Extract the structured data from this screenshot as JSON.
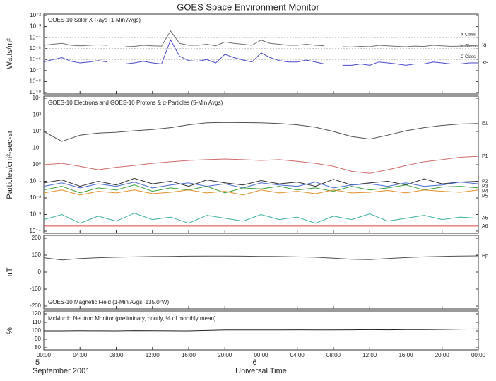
{
  "title": "GOES Space Environment Monitor",
  "chart_data": [
    {
      "type": "line",
      "title": "GOES-10 Solar X-Rays (1-Min Avgs)",
      "ylabel": "Watts/m²",
      "log": true,
      "ylim": [
        1e-09,
        0.01
      ],
      "yticks": [
        {
          "value": 0.01,
          "label": "10⁻²"
        },
        {
          "value": 0.001,
          "label": "10⁻³"
        },
        {
          "value": 0.0001,
          "label": "10⁻⁴"
        },
        {
          "value": 1e-05,
          "label": "10⁻⁵"
        },
        {
          "value": 1e-06,
          "label": "10⁻⁶"
        },
        {
          "value": 1e-07,
          "label": "10⁻⁷"
        },
        {
          "value": 1e-08,
          "label": "10⁻⁸"
        },
        {
          "value": 1e-09,
          "label": "10⁻⁹"
        }
      ],
      "reference_lines": [
        {
          "value": 0.0001,
          "label": "X Class"
        },
        {
          "value": 1e-05,
          "label": "M Class"
        },
        {
          "value": 1e-06,
          "label": "C Class"
        }
      ],
      "x": [
        0,
        1,
        2,
        3,
        4,
        5,
        6,
        7,
        8,
        9,
        10,
        11,
        12,
        13,
        14,
        15,
        16,
        17,
        18,
        19,
        20,
        21,
        22,
        23,
        24,
        25,
        26,
        27,
        28,
        29,
        30,
        31,
        32,
        33,
        34,
        35,
        36,
        37,
        38,
        39,
        40,
        41,
        42,
        43,
        44,
        45,
        46,
        47,
        48
      ],
      "series": [
        {
          "name": "XL",
          "color": "#707070",
          "values": [
            2e-05,
            2.5e-05,
            3e-05,
            2e-05,
            1.8e-05,
            2e-05,
            2.2e-05,
            2e-05,
            null,
            1.5e-05,
            1.6e-05,
            2e-05,
            1.8e-05,
            1.7e-05,
            0.0004,
            3e-05,
            2e-05,
            2e-05,
            2.5e-05,
            1.8e-05,
            4e-05,
            3e-05,
            2.5e-05,
            2e-05,
            6e-05,
            3e-05,
            2.5e-05,
            2e-05,
            2e-05,
            2.5e-05,
            2e-05,
            1.8e-05,
            null,
            1.5e-05,
            1.4e-05,
            1.6e-05,
            1.5e-05,
            2e-05,
            1.8e-05,
            1.6e-05,
            1.5e-05,
            1.7e-05,
            1.6e-05,
            2e-05,
            1.8e-05,
            1.6e-05,
            1.7e-05,
            1.8e-05,
            1.8e-05
          ]
        },
        {
          "name": "XS",
          "color": "#4848c8",
          "values": [
            6e-07,
            1e-06,
            1.5e-06,
            7e-07,
            5e-07,
            6e-07,
            8e-07,
            6e-07,
            null,
            4e-07,
            5e-07,
            7e-07,
            5e-07,
            4e-07,
            6e-05,
            2e-06,
            8e-07,
            7e-07,
            1e-06,
            5e-07,
            3e-06,
            1.5e-06,
            9e-07,
            6e-07,
            4e-06,
            1.5e-06,
            8e-07,
            6e-07,
            6e-07,
            9e-07,
            6e-07,
            4e-07,
            null,
            3e-07,
            3e-07,
            4e-07,
            3e-07,
            6e-07,
            5e-07,
            4e-07,
            3e-07,
            4e-07,
            4e-07,
            6e-07,
            5e-07,
            4e-07,
            4e-07,
            5e-07,
            5e-07
          ]
        }
      ]
    },
    {
      "type": "line",
      "title": "GOES-10 Electrons and GOES-10 Protons & α-Particles (5-Min Avgs)",
      "ylabel": "Particles/cm²-sec-sr",
      "log": true,
      "ylim": [
        0.0001,
        10000
      ],
      "yticks": [
        {
          "value": 10000,
          "label": "10⁴"
        },
        {
          "value": 1000,
          "label": "10³"
        },
        {
          "value": 100,
          "label": "10²"
        },
        {
          "value": 10,
          "label": "10¹"
        },
        {
          "value": 1,
          "label": "10⁰"
        },
        {
          "value": 0.1,
          "label": "10⁻¹"
        },
        {
          "value": 0.01,
          "label": "10⁻²"
        },
        {
          "value": 0.001,
          "label": "10⁻³"
        },
        {
          "value": 0.0001,
          "label": "10⁻⁴"
        }
      ],
      "x": [
        0,
        2,
        4,
        6,
        8,
        10,
        12,
        14,
        16,
        18,
        20,
        22,
        24,
        26,
        28,
        30,
        32,
        34,
        36,
        38,
        40,
        42,
        44,
        46,
        48
      ],
      "series": [
        {
          "name": "E1",
          "color": "#505050",
          "values": [
            100,
            25,
            60,
            80,
            90,
            110,
            130,
            170,
            250,
            330,
            350,
            340,
            330,
            300,
            250,
            180,
            100,
            50,
            35,
            60,
            110,
            170,
            230,
            280,
            300
          ]
        },
        {
          "name": "P1",
          "color": "#d06a6a",
          "values": [
            1,
            1.2,
            0.8,
            0.5,
            0.7,
            0.9,
            1.2,
            1.5,
            1.8,
            2,
            2.2,
            2,
            1.8,
            2,
            1.6,
            1.2,
            0.8,
            0.4,
            0.3,
            0.5,
            0.9,
            1.5,
            2,
            2.8,
            3.2
          ]
        },
        {
          "name": "P2",
          "color": "#303030",
          "values": [
            0.08,
            0.12,
            0.05,
            0.1,
            0.06,
            0.15,
            0.07,
            0.1,
            0.05,
            0.12,
            0.08,
            0.06,
            0.11,
            0.07,
            0.09,
            0.05,
            0.13,
            0.06,
            0.08,
            0.1,
            0.06,
            0.14,
            0.07,
            0.09,
            0.1
          ]
        },
        {
          "name": "P3",
          "color": "#4a6ad0",
          "values": [
            0.05,
            0.08,
            0.04,
            0.07,
            0.05,
            0.09,
            0.04,
            0.06,
            0.08,
            0.05,
            0.07,
            0.04,
            0.08,
            0.06,
            0.05,
            0.09,
            0.04,
            0.06,
            0.07,
            0.05,
            0.08,
            0.05,
            0.06,
            0.09,
            0.07
          ]
        },
        {
          "name": "P4",
          "color": "#3aa03a",
          "values": [
            0.03,
            0.05,
            0.02,
            0.04,
            0.03,
            0.06,
            0.025,
            0.04,
            0.03,
            0.05,
            0.02,
            0.04,
            0.035,
            0.05,
            0.03,
            0.04,
            0.025,
            0.05,
            0.03,
            0.04,
            0.06,
            0.03,
            0.045,
            0.05,
            0.04
          ]
        },
        {
          "name": "P5",
          "color": "#e0902a",
          "values": [
            0.02,
            0.03,
            0.015,
            0.025,
            0.02,
            0.03,
            0.018,
            0.022,
            0.03,
            0.02,
            0.025,
            0.015,
            0.03,
            0.02,
            0.025,
            0.018,
            0.03,
            0.02,
            0.022,
            0.028,
            0.02,
            0.03,
            0.025,
            0.022,
            0.03
          ]
        },
        {
          "name": "A5",
          "color": "#3ab0a0",
          "values": [
            0.0005,
            0.001,
            0.0003,
            0.0008,
            0.0004,
            0.0012,
            0.0005,
            0.0007,
            0.0003,
            0.0009,
            0.0006,
            0.0004,
            0.001,
            0.0005,
            0.0007,
            0.0003,
            0.0008,
            0.0005,
            0.0011,
            0.0004,
            0.0006,
            0.0009,
            0.0005,
            0.0007,
            0.0006
          ]
        },
        {
          "name": "A6",
          "color": "#e04040",
          "values": [
            0.0002,
            0.0002,
            0.0002,
            0.0002,
            0.0002,
            0.0002,
            0.0002,
            0.0002,
            0.0002,
            0.0002,
            0.0002,
            0.0002,
            0.0002,
            0.0002,
            0.0002,
            0.0002,
            0.0002,
            0.0002,
            0.0002,
            0.0002,
            0.0002,
            0.0002,
            0.0002,
            0.0002,
            0.0002
          ]
        }
      ]
    },
    {
      "type": "line",
      "title": "GOES-10 Magnetic Field (1-Min Avgs, 135.0°W)",
      "ylabel": "nT",
      "ylim": [
        -200,
        200
      ],
      "yticks": [
        200,
        100,
        0,
        -100,
        -200
      ],
      "x": [
        0,
        2,
        4,
        6,
        8,
        10,
        12,
        14,
        16,
        18,
        20,
        22,
        24,
        26,
        28,
        30,
        32,
        34,
        36,
        38,
        40,
        42,
        44,
        46,
        48
      ],
      "series": [
        {
          "name": "Hp",
          "color": "#505050",
          "values": [
            85,
            72,
            80,
            85,
            88,
            90,
            92,
            93,
            94,
            95,
            95,
            94,
            93,
            92,
            90,
            88,
            82,
            76,
            74,
            80,
            86,
            90,
            93,
            95,
            96
          ]
        }
      ]
    },
    {
      "type": "line",
      "title": "McMurdo Neutron Monitor (preliminary, hourly, % of monthly mean)",
      "ylabel": "%",
      "ylim": [
        80,
        120
      ],
      "yticks": [
        120,
        110,
        100,
        90,
        80
      ],
      "x": [
        0,
        2,
        4,
        6,
        8,
        10,
        12,
        14,
        16,
        18,
        20,
        22,
        24,
        26,
        28,
        30,
        32,
        34,
        36,
        38,
        40,
        42,
        44,
        46,
        48
      ],
      "color": "#202020",
      "values": [
        100,
        100,
        100.2,
        100.1,
        100,
        100.3,
        100.2,
        100.1,
        100,
        100.5,
        101,
        101,
        101.1,
        101,
        101.2,
        101,
        101.1,
        101.2,
        101.3,
        101.2,
        101.4,
        101.5,
        101.7,
        102,
        102.2
      ],
      "xlim": [
        0,
        48
      ],
      "xticks": [
        {
          "value": 0,
          "label": "00:00"
        },
        {
          "value": 4,
          "label": "04:00"
        },
        {
          "value": 8,
          "label": "08:00"
        },
        {
          "value": 12,
          "label": "12:00"
        },
        {
          "value": 16,
          "label": "16:00"
        },
        {
          "value": 20,
          "label": "20:00"
        },
        {
          "value": 24,
          "label": "00:00"
        },
        {
          "value": 28,
          "label": "04:00"
        },
        {
          "value": 32,
          "label": "08:00"
        },
        {
          "value": 36,
          "label": "12:00"
        },
        {
          "value": 40,
          "label": "16:00"
        },
        {
          "value": 44,
          "label": "20:00"
        },
        {
          "value": 48,
          "label": "00:00"
        }
      ],
      "xday_labels": [
        {
          "value": 0,
          "label": "5"
        },
        {
          "value": 24,
          "label": "6"
        }
      ],
      "date_label": "September 2001",
      "xlabel": "Universal Time"
    }
  ]
}
